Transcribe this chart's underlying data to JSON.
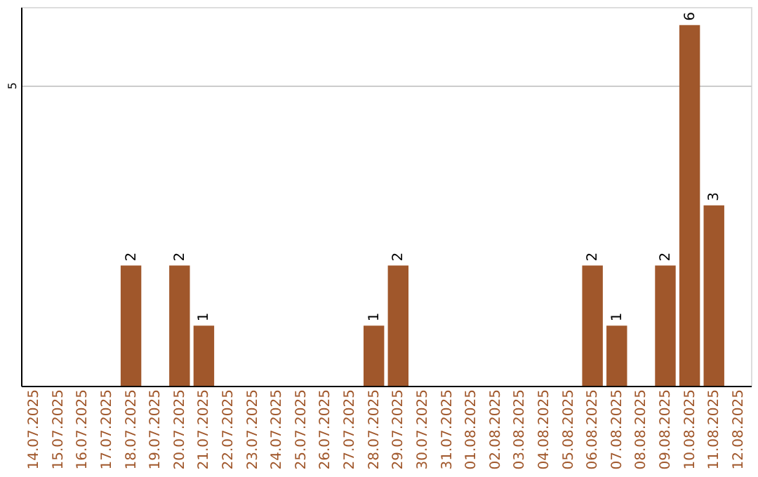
{
  "chart_data": {
    "type": "bar",
    "categories": [
      "14.07.2025",
      "15.07.2025",
      "16.07.2025",
      "17.07.2025",
      "18.07.2025",
      "19.07.2025",
      "20.07.2025",
      "21.07.2025",
      "22.07.2025",
      "23.07.2025",
      "24.07.2025",
      "25.07.2025",
      "26.07.2025",
      "27.07.2025",
      "28.07.2025",
      "29.07.2025",
      "30.07.2025",
      "31.07.2025",
      "01.08.2025",
      "02.08.2025",
      "03.08.2025",
      "04.08.2025",
      "05.08.2025",
      "06.08.2025",
      "07.08.2025",
      "08.08.2025",
      "09.08.2025",
      "10.08.2025",
      "11.08.2025",
      "12.08.2025"
    ],
    "values": [
      0,
      0,
      0,
      0,
      2,
      0,
      2,
      1,
      0,
      0,
      0,
      0,
      0,
      0,
      1,
      2,
      0,
      0,
      0,
      0,
      0,
      0,
      0,
      2,
      1,
      0,
      2,
      6,
      3,
      0
    ],
    "value_labels": [
      null,
      null,
      null,
      null,
      "2",
      null,
      "2",
      "1",
      null,
      null,
      null,
      null,
      null,
      null,
      "1",
      "2",
      null,
      null,
      null,
      null,
      null,
      null,
      null,
      "2",
      "1",
      null,
      "2",
      "6",
      "3",
      null
    ],
    "color": "#a0572b",
    "ylim": [
      0,
      6.3
    ],
    "yticks": [
      5
    ],
    "grid": "y"
  }
}
